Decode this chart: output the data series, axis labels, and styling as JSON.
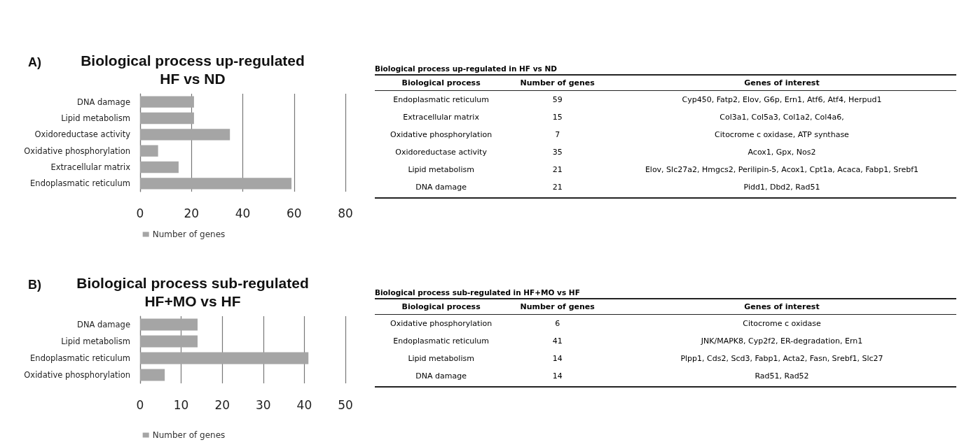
{
  "chart_data": [
    {
      "type": "bar",
      "orientation": "horizontal",
      "title": "Biological process up-regulated\nHF vs ND",
      "annotations": [
        "A)"
      ],
      "categories": [
        "DNA damage",
        "Lipid metabolism",
        "Oxidoreductase activity",
        "Oxidative phosphorylation",
        "Extracellular matrix",
        "Endoplasmatic reticulum"
      ],
      "series": [
        {
          "name": "Number of genes",
          "color": "#a5a5a5",
          "values": [
            21,
            21,
            35,
            7,
            15,
            59
          ]
        }
      ],
      "xlim": [
        0,
        80
      ],
      "xticks": [
        0,
        20,
        40,
        60,
        80
      ],
      "grid": "x",
      "legend": "bottom"
    },
    {
      "type": "other",
      "title": "Biological process up-regulated in HF vs ND",
      "categories": [
        "Biological process",
        "Number of genes",
        "Genes of interest"
      ],
      "cell_labels": [
        [
          "Endoplasmatic reticulum",
          "59",
          "Cyp450, Fatp2, Elov, G6p, Ern1, Atf6, Atf4, Herpud1"
        ],
        [
          "Extracellular matrix",
          "15",
          "Col3a1, Col5a3, Col1a2, Col4a6,"
        ],
        [
          "Oxidative phosphorylation",
          "7",
          "Citocrome c oxidase, ATP synthase"
        ],
        [
          "Oxidoreductase activity",
          "35",
          "Acox1, Gpx, Nos2"
        ],
        [
          "Lipid metabolism",
          "21",
          "Elov, Slc27a2, Hmgcs2, Perilipin-5, Acox1, Cpt1a, Acaca, Fabp1, Srebf1"
        ],
        [
          "DNA damage",
          "21",
          "Pidd1, Dbd2, Rad51"
        ]
      ]
    },
    {
      "type": "bar",
      "orientation": "horizontal",
      "title": "Biological process sub-regulated\nHF+MO vs HF",
      "annotations": [
        "B)"
      ],
      "categories": [
        "DNA damage",
        "Lipid metabolism",
        "Endoplasmatic reticulum",
        "Oxidative phosphorylation"
      ],
      "series": [
        {
          "name": "Number of genes",
          "color": "#a5a5a5",
          "values": [
            14,
            14,
            41,
            6
          ]
        }
      ],
      "xlim": [
        0,
        50
      ],
      "xticks": [
        0,
        10,
        20,
        30,
        40,
        50
      ],
      "grid": "x",
      "legend": "bottom"
    },
    {
      "type": "other",
      "title": "Biological process sub-regulated in HF+MO vs HF",
      "categories": [
        "Biological process",
        "Number of genes",
        "Genes of interest"
      ],
      "cell_labels": [
        [
          "Oxidative phosphorylation",
          "6",
          "Citocrome c oxidase"
        ],
        [
          "Endoplasmatic reticulum",
          "41",
          "JNK/MAPK8, Cyp2f2, ER-degradation, Ern1"
        ],
        [
          "Lipid metabolism",
          "14",
          "Plpp1, Cds2, Scd3, Fabp1, Acta2, Fasn, Srebf1, Slc27"
        ],
        [
          "DNA damage",
          "14",
          "Rad51, Rad52"
        ]
      ]
    }
  ]
}
